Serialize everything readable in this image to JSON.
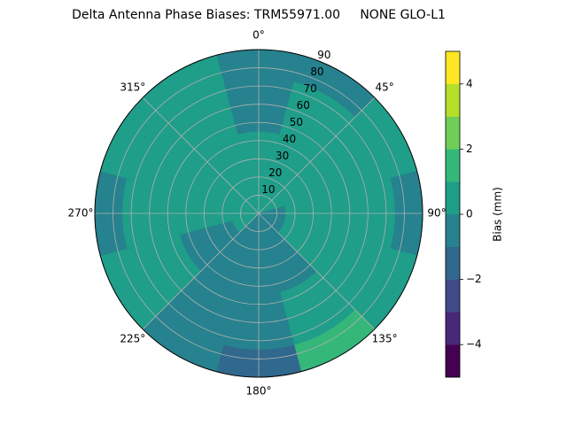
{
  "chart_data": {
    "type": "polar_contour",
    "title": "Delta Antenna Phase Biases: TRM55971.00     NONE GLO-L1",
    "colorbar_label": "Bias (mm)",
    "theta": [
      0,
      30,
      60,
      90,
      120,
      150,
      180,
      210,
      240,
      270,
      300,
      330
    ],
    "r": [
      7.5,
      22.5,
      37.5,
      52.5,
      67.5,
      82.5
    ],
    "values": [
      [
        0.3,
        0.4,
        0.4,
        -0.3,
        -0.5,
        -0.5
      ],
      [
        0.3,
        0.4,
        0.5,
        0.5,
        0.4,
        -0.3
      ],
      [
        0.3,
        0.5,
        0.5,
        0.5,
        0.5,
        0.4
      ],
      [
        -0.3,
        0.4,
        0.5,
        0.5,
        0.3,
        -0.4
      ],
      [
        -0.3,
        0.4,
        0.5,
        0.5,
        0.5,
        0.5
      ],
      [
        -0.3,
        -0.3,
        -0.4,
        0.3,
        0.5,
        1.2
      ],
      [
        -0.3,
        -0.4,
        -0.4,
        -0.5,
        -0.6,
        -1.2
      ],
      [
        -0.3,
        -0.4,
        -0.5,
        -0.5,
        -0.5,
        -0.4
      ],
      [
        0.3,
        -0.3,
        -0.4,
        0.3,
        0.5,
        0.5
      ],
      [
        0.3,
        0.4,
        0.5,
        0.5,
        0.4,
        -0.3
      ],
      [
        0.3,
        0.4,
        0.5,
        0.5,
        0.5,
        0.5
      ],
      [
        0.3,
        0.4,
        0.5,
        0.5,
        0.4,
        0.3
      ]
    ],
    "levels": [
      -5,
      -4,
      -3,
      -2,
      -1,
      0,
      1,
      2,
      3,
      4,
      5
    ],
    "colors": [
      "#440154",
      "#482878",
      "#3e4a89",
      "#31688e",
      "#26828e",
      "#1f9e89",
      "#35b779",
      "#6ece58",
      "#b5de2b",
      "#fde725"
    ],
    "rlim": [
      0,
      90
    ],
    "rticks": [
      10,
      20,
      30,
      40,
      50,
      60,
      70,
      80,
      90
    ],
    "theta_ticks": [
      {
        "value": 0,
        "label": "0°"
      },
      {
        "value": 45,
        "label": "45°"
      },
      {
        "value": 90,
        "label": "90°"
      },
      {
        "value": 135,
        "label": "135°"
      },
      {
        "value": 180,
        "label": "180°"
      },
      {
        "value": 225,
        "label": "225°"
      },
      {
        "value": 270,
        "label": "270°"
      },
      {
        "value": 315,
        "label": "315°"
      }
    ],
    "clim": [
      -5,
      5
    ],
    "cticks": [
      {
        "value": -4,
        "label": "−4"
      },
      {
        "value": -2,
        "label": "−2"
      },
      0,
      2,
      4
    ],
    "grid": true
  }
}
